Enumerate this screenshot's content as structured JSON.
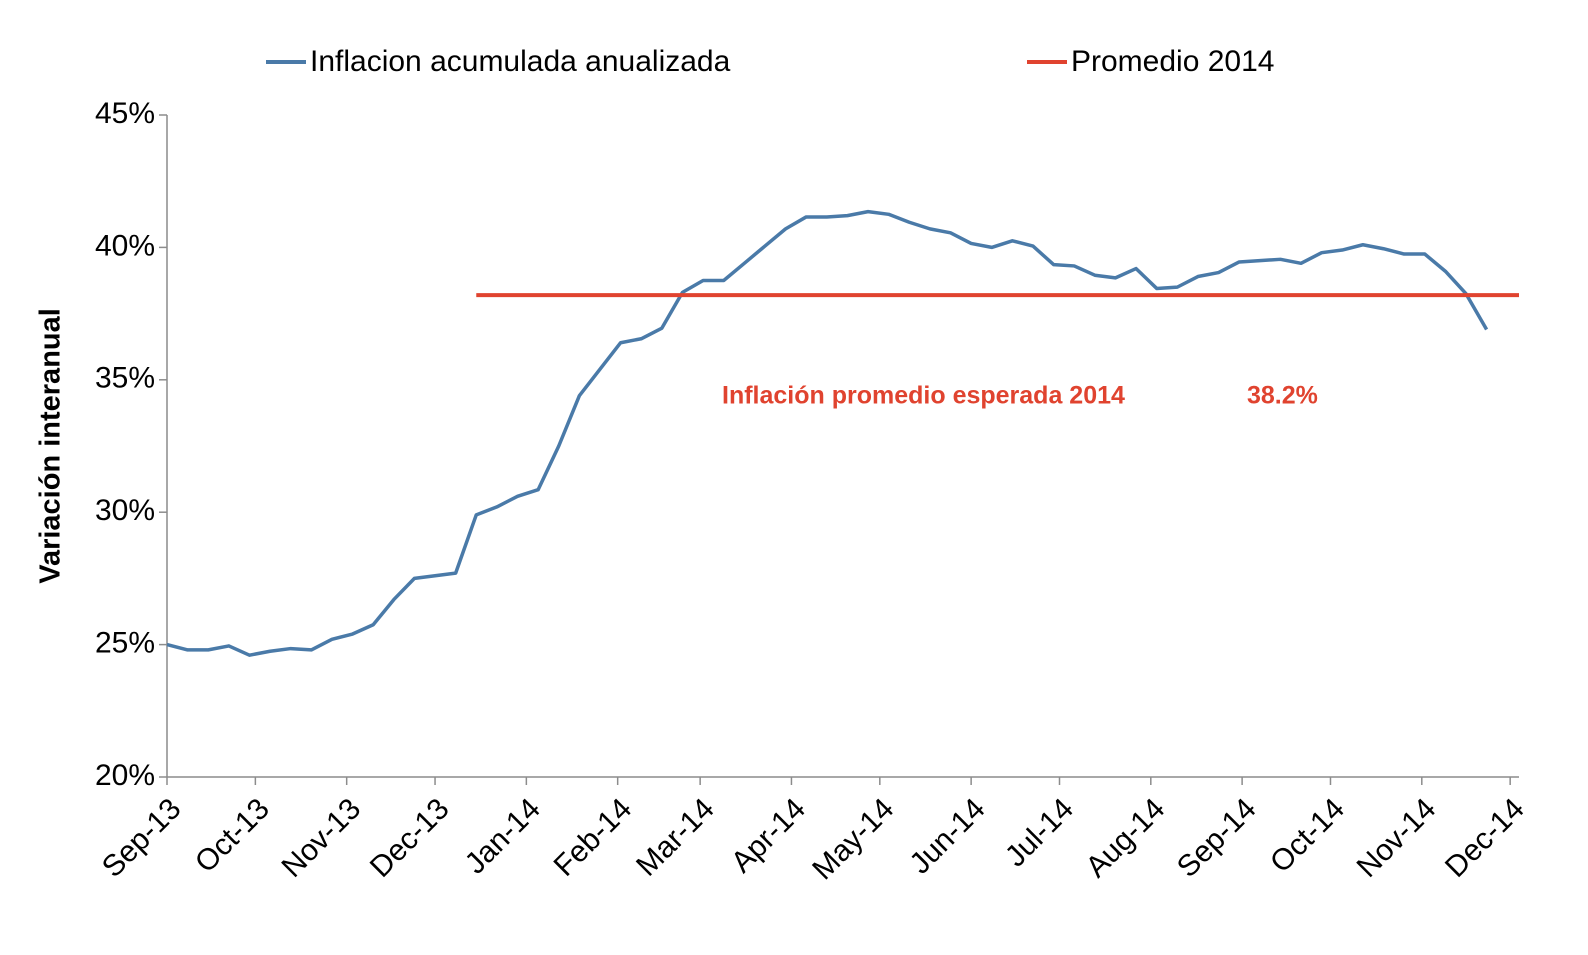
{
  "chart_data": {
    "type": "line",
    "y_label": "Variación interanual",
    "annotations": [
      "Inflación promedio esperada 2014",
      "38.2%"
    ],
    "xlim": [
      0,
      459
    ],
    "xticks": [
      {
        "value": 0,
        "label": "Sep-13"
      },
      {
        "value": 30,
        "label": "Oct-13"
      },
      {
        "value": 61,
        "label": "Nov-13"
      },
      {
        "value": 91,
        "label": "Dec-13"
      },
      {
        "value": 122,
        "label": "Jan-14"
      },
      {
        "value": 153,
        "label": "Feb-14"
      },
      {
        "value": 181,
        "label": "Mar-14"
      },
      {
        "value": 212,
        "label": "Apr-14"
      },
      {
        "value": 242,
        "label": "May-14"
      },
      {
        "value": 273,
        "label": "Jun-14"
      },
      {
        "value": 303,
        "label": "Jul-14"
      },
      {
        "value": 334,
        "label": "Aug-14"
      },
      {
        "value": 365,
        "label": "Sep-14"
      },
      {
        "value": 395,
        "label": "Oct-14"
      },
      {
        "value": 426,
        "label": "Nov-14"
      },
      {
        "value": 456,
        "label": "Dec-14"
      }
    ],
    "ylim": [
      20,
      45
    ],
    "yticks": [
      {
        "value": 20,
        "label": "20%"
      },
      {
        "value": 25,
        "label": "25%"
      },
      {
        "value": 30,
        "label": "30%"
      },
      {
        "value": 35,
        "label": "35%"
      },
      {
        "value": 40,
        "label": "40%"
      },
      {
        "value": 45,
        "label": "45%"
      }
    ],
    "series": [
      {
        "name": "Inflacion acumulada anualizada",
        "color": "#4a7aa8",
        "x": [
          0,
          7,
          14,
          21,
          28,
          35,
          42,
          49,
          56,
          63,
          70,
          77,
          84,
          91,
          98,
          105,
          112,
          119,
          126,
          133,
          140,
          147,
          154,
          161,
          168,
          175,
          182,
          189,
          196,
          203,
          210,
          217,
          224,
          231,
          238,
          245,
          252,
          259,
          266,
          273,
          280,
          287,
          294,
          301,
          308,
          315,
          322,
          329,
          336,
          343,
          350,
          357,
          364,
          371,
          378,
          385,
          392,
          399,
          406,
          413,
          420,
          427,
          434,
          441,
          448
        ],
        "values": [
          25.0,
          24.8,
          24.8,
          24.95,
          24.6,
          24.75,
          24.85,
          24.8,
          25.2,
          25.4,
          25.75,
          26.7,
          27.5,
          27.6,
          27.7,
          29.9,
          30.2,
          30.6,
          30.85,
          32.5,
          34.4,
          35.4,
          36.4,
          36.55,
          36.95,
          38.3,
          38.75,
          38.75,
          39.4,
          40.05,
          40.7,
          41.15,
          41.15,
          41.2,
          41.35,
          41.25,
          40.95,
          40.7,
          40.55,
          40.15,
          40.0,
          40.25,
          40.05,
          39.35,
          39.3,
          38.95,
          38.85,
          39.2,
          38.45,
          38.5,
          38.9,
          39.05,
          39.45,
          39.5,
          39.55,
          39.4,
          39.8,
          39.9,
          40.1,
          39.95,
          39.75,
          39.75,
          39.1,
          38.25,
          36.9
        ]
      },
      {
        "name": "Promedio 2014",
        "color": "#e0432f",
        "x": [
          105,
          459
        ],
        "values": [
          38.2,
          38.2
        ]
      }
    ]
  }
}
